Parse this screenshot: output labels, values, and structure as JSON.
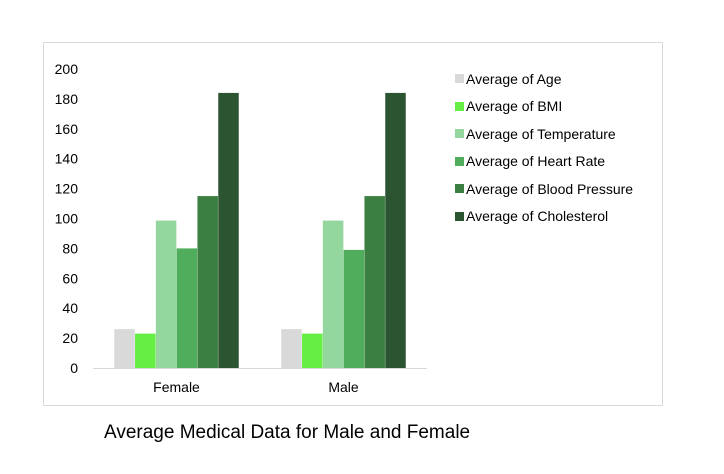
{
  "chart_data": {
    "type": "bar",
    "title": "",
    "caption": "Average Medical Data for Male and Female",
    "xlabel": "",
    "ylabel": "",
    "categories": [
      "Female",
      "Male"
    ],
    "ylim": [
      0,
      200
    ],
    "yticks": [
      0,
      20,
      40,
      60,
      80,
      100,
      120,
      140,
      160,
      180,
      200
    ],
    "grid": false,
    "legend_position": "right",
    "series": [
      {
        "name": "Average of Age",
        "color": "#d9d9d9",
        "values": [
          26,
          26
        ]
      },
      {
        "name": "Average of BMI",
        "color": "#66ee44",
        "values": [
          23,
          23
        ]
      },
      {
        "name": "Average of Temperature",
        "color": "#93d69e",
        "values": [
          98.6,
          98.6
        ]
      },
      {
        "name": "Average of Heart Rate",
        "color": "#4fad5b",
        "values": [
          80,
          79
        ]
      },
      {
        "name": "Average of Blood Pressure",
        "color": "#3b7f42",
        "values": [
          115,
          115
        ]
      },
      {
        "name": "Average of Cholesterol",
        "color": "#2b5430",
        "values": [
          184,
          184
        ]
      }
    ]
  }
}
